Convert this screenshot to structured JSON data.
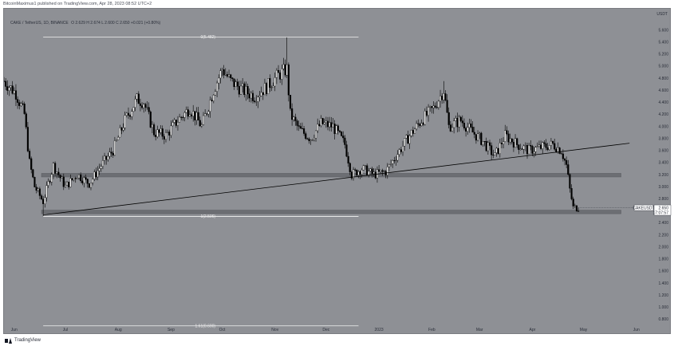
{
  "header": {
    "publish_text": "BitcoinMaximus1 published on TradingView.com, Apr 28, 2023 08:52 UTC+2"
  },
  "symbol_info": {
    "pair": "CAKE / TetherUS, 1D, BINANCE",
    "ohlc": "O 2.629  H 2.674  L 2.600  C 2.650  +0.021 (+0.80%)"
  },
  "footer": {
    "brand": "TradingView"
  },
  "colors": {
    "background": "#8e9095",
    "candle": "#000000",
    "fib_line": "#f2f2f2",
    "zone": "#6c6e73",
    "trendline": "#000000"
  },
  "chart_data": {
    "type": "candlestick",
    "symbol": "CAKEUSDT",
    "y_axis_unit": "USDT",
    "ylim": [
      0.7,
      5.95
    ],
    "y_ticks": [
      "5.600",
      "5.400",
      "5.200",
      "5.000",
      "4.800",
      "4.600",
      "4.400",
      "4.200",
      "4.000",
      "3.800",
      "3.600",
      "3.400",
      "3.200",
      "3.000",
      "2.800",
      "2.600",
      "2.400",
      "2.200",
      "2.000",
      "1.800",
      "1.600",
      "1.400",
      "1.200",
      "1.000",
      "0.800"
    ],
    "x_ticks": [
      "Jun",
      "Jul",
      "Aug",
      "Sep",
      "Oct",
      "Nov",
      "Dec",
      "2023",
      "Feb",
      "Mar",
      "Apr",
      "May",
      "Jun"
    ],
    "x_range": [
      "2022-05-26",
      "2023-06-10"
    ],
    "last_price": "2.650",
    "countdown": "17:07:57",
    "fib_levels": [
      {
        "label": "0(5.482)",
        "value": 5.482
      },
      {
        "label": "1(2.506)",
        "value": 2.506
      },
      {
        "label": "1.61(0.690)",
        "value": 0.69
      }
    ],
    "zones": [
      {
        "low": 3.16,
        "high": 3.22
      },
      {
        "low": 2.55,
        "high": 2.61
      }
    ],
    "trendline": {
      "start": [
        "2022-06-18",
        2.53
      ],
      "end": [
        "2023-05-28",
        3.72
      ]
    },
    "price_path": [
      [
        "2022-05-26",
        4.75
      ],
      [
        "2022-06-02",
        4.55
      ],
      [
        "2022-06-07",
        4.2
      ],
      [
        "2022-06-10",
        3.4
      ],
      [
        "2022-06-13",
        3.0
      ],
      [
        "2022-06-18",
        2.75
      ],
      [
        "2022-06-24",
        3.35
      ],
      [
        "2022-07-01",
        3.0
      ],
      [
        "2022-07-08",
        3.2
      ],
      [
        "2022-07-15",
        3.05
      ],
      [
        "2022-07-22",
        3.35
      ],
      [
        "2022-07-29",
        3.6
      ],
      [
        "2022-08-05",
        4.1
      ],
      [
        "2022-08-12",
        4.45
      ],
      [
        "2022-08-16",
        4.4
      ],
      [
        "2022-08-22",
        3.9
      ],
      [
        "2022-08-29",
        3.85
      ],
      [
        "2022-09-05",
        4.1
      ],
      [
        "2022-09-12",
        4.3
      ],
      [
        "2022-09-19",
        4.0
      ],
      [
        "2022-09-26",
        4.6
      ],
      [
        "2022-10-01",
        4.95
      ],
      [
        "2022-10-06",
        4.75
      ],
      [
        "2022-10-13",
        4.6
      ],
      [
        "2022-10-20",
        4.5
      ],
      [
        "2022-10-27",
        4.65
      ],
      [
        "2022-11-03",
        4.85
      ],
      [
        "2022-11-08",
        4.95
      ],
      [
        "2022-11-10",
        4.2
      ],
      [
        "2022-11-15",
        3.95
      ],
      [
        "2022-11-22",
        3.8
      ],
      [
        "2022-11-28",
        4.05
      ],
      [
        "2022-12-05",
        4.0
      ],
      [
        "2022-12-12",
        3.7
      ],
      [
        "2022-12-16",
        3.2
      ],
      [
        "2022-12-22",
        3.3
      ],
      [
        "2022-12-29",
        3.2
      ],
      [
        "2023-01-05",
        3.25
      ],
      [
        "2023-01-12",
        3.55
      ],
      [
        "2023-01-19",
        3.85
      ],
      [
        "2023-01-26",
        4.1
      ],
      [
        "2023-02-02",
        4.3
      ],
      [
        "2023-02-08",
        4.6
      ],
      [
        "2023-02-11",
        4.0
      ],
      [
        "2023-02-18",
        4.1
      ],
      [
        "2023-02-25",
        3.9
      ],
      [
        "2023-03-03",
        3.75
      ],
      [
        "2023-03-10",
        3.5
      ],
      [
        "2023-03-16",
        3.85
      ],
      [
        "2023-03-23",
        3.7
      ],
      [
        "2023-03-30",
        3.6
      ],
      [
        "2023-04-06",
        3.65
      ],
      [
        "2023-04-13",
        3.7
      ],
      [
        "2023-04-18",
        3.6
      ],
      [
        "2023-04-21",
        3.35
      ],
      [
        "2023-04-23",
        2.95
      ],
      [
        "2023-04-25",
        2.65
      ],
      [
        "2023-04-28",
        2.65
      ]
    ]
  }
}
